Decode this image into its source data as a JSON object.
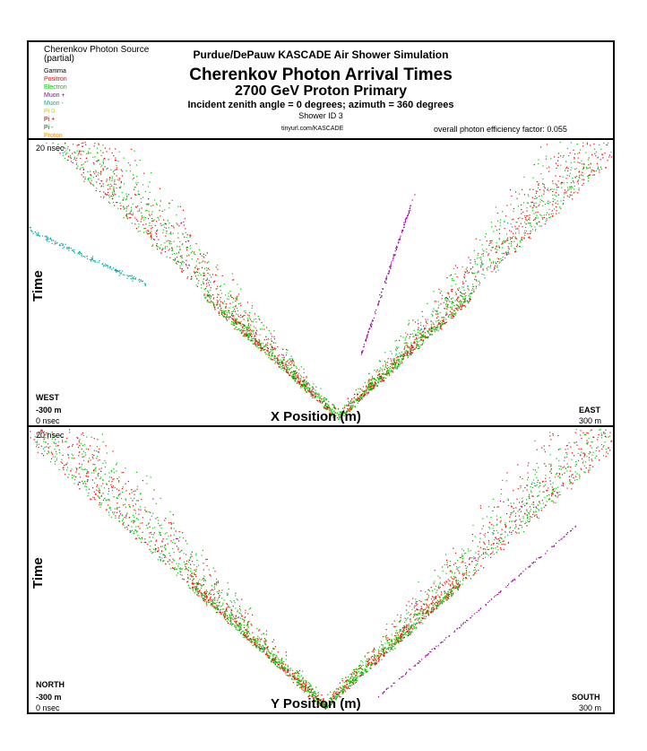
{
  "legend": {
    "title_line1": "Cherenkov Photon Source",
    "title_line2": "(partial)",
    "items": [
      {
        "label": "Gamma",
        "color": "#000000"
      },
      {
        "label": "Positron",
        "color": "#ff0000"
      },
      {
        "label": "Electron",
        "color": "#00cc00"
      },
      {
        "label": "Muon +",
        "color": "#990099"
      },
      {
        "label": "Muon -",
        "color": "#00aaaa"
      },
      {
        "label": "Pi 0",
        "color": "#cccc00"
      },
      {
        "label": "Pi +",
        "color": "#800000"
      },
      {
        "label": "Pi -",
        "color": "#006600"
      },
      {
        "label": "Proton",
        "color": "#ff8800"
      }
    ]
  },
  "header": {
    "org_title": "Purdue/DePauw KASCADE Air Shower Simulation",
    "title": "Cherenkov Photon Arrival Times",
    "subtitle": "2700 GeV Proton Primary",
    "angles": "Incident zenith angle =  0 degrees;  azimuth =  360 degrees",
    "shower_id": "Shower ID 3",
    "url": "tinyurl.com/KASCADE",
    "efficiency": "overall photon efficiency factor: 0.055"
  },
  "chart_data": [
    {
      "type": "scatter",
      "xlabel": "X Position (m)",
      "ylabel": "Time",
      "xlim": [
        -300,
        300
      ],
      "ylim_label_top": "20 nsec",
      "ylim_label_bottom": "0 nsec",
      "xmin_label": "-300 m",
      "xmax_label": "300 m",
      "left_direction": "WEST",
      "right_direction": "EAST",
      "series": [
        {
          "source": "Electron",
          "color": "#00cc00"
        },
        {
          "source": "Positron",
          "color": "#ff0000"
        },
        {
          "source": "Muon +",
          "color": "#990099"
        },
        {
          "source": "Muon -",
          "color": "#00aaaa"
        }
      ]
    },
    {
      "type": "scatter",
      "xlabel": "Y Position (m)",
      "ylabel": "Time",
      "xlim": [
        -300,
        300
      ],
      "ylim_label_top": "20 nsec",
      "ylim_label_bottom": "0 nsec",
      "xmin_label": "-300 m",
      "xmax_label": "300 m",
      "left_direction": "NORTH",
      "right_direction": "SOUTH",
      "series": [
        {
          "source": "Electron",
          "color": "#00cc00"
        },
        {
          "source": "Positron",
          "color": "#ff0000"
        },
        {
          "source": "Muon +",
          "color": "#990099"
        },
        {
          "source": "Muon -",
          "color": "#00aaaa"
        }
      ]
    }
  ]
}
